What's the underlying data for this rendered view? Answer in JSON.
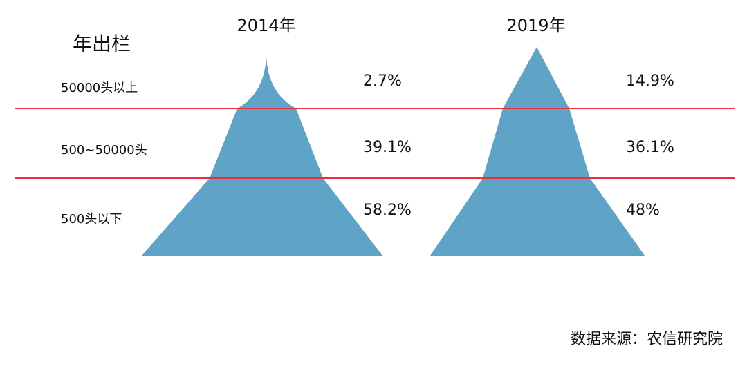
{
  "header": {
    "row_title": "年出栏"
  },
  "rows": [
    "50000头以上",
    "500~50000头",
    "500头以下"
  ],
  "columns": [
    {
      "year": "2014年",
      "values": [
        "2.7%",
        "39.1%",
        "58.2%"
      ]
    },
    {
      "year": "2019年",
      "values": [
        "14.9%",
        "36.1%",
        "48%"
      ]
    }
  ],
  "source": "数据来源：农信研究院"
}
